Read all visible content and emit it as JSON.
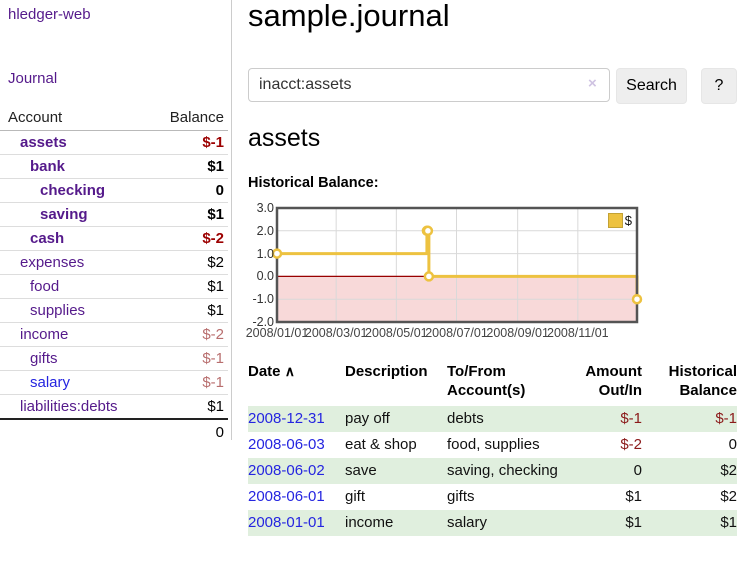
{
  "colors": {
    "purple_link": "#551a8b",
    "blue_link": "#2525e0",
    "neg_strong": "#9c0000",
    "neg_muted": "#b86e6e",
    "table_neg": "#8b1a1a",
    "stripe_green": "#e0efde",
    "series_yellow": "#edc240",
    "negative_region": "#f8d9d9",
    "zero_line": "#990000",
    "grid": "#d9d9d9",
    "plot_border": "#545454"
  },
  "sidebar": {
    "brand": "hledger-web",
    "nav": [
      {
        "label": "Journal"
      }
    ],
    "table": {
      "headers": [
        "Account",
        "Balance"
      ],
      "rows": [
        {
          "account": "assets",
          "indent": 1,
          "bold": true,
          "link": "purple",
          "balance": "$-1",
          "balance_style": "negStrong"
        },
        {
          "account": "bank",
          "indent": 2,
          "bold": true,
          "link": "purple",
          "balance": "$1",
          "balance_style": "normal"
        },
        {
          "account": "checking",
          "indent": 3,
          "bold": true,
          "link": "purple",
          "balance": "0",
          "balance_style": "normal"
        },
        {
          "account": "saving",
          "indent": 3,
          "bold": true,
          "link": "purple",
          "balance": "$1",
          "balance_style": "normal"
        },
        {
          "account": "cash",
          "indent": 2,
          "bold": true,
          "link": "purple",
          "balance": "$-2",
          "balance_style": "negStrong"
        },
        {
          "account": "expenses",
          "indent": 1,
          "bold": false,
          "link": "purple",
          "balance": "$2",
          "balance_style": "normal"
        },
        {
          "account": "food",
          "indent": 2,
          "bold": false,
          "link": "purple",
          "balance": "$1",
          "balance_style": "normal"
        },
        {
          "account": "supplies",
          "indent": 2,
          "bold": false,
          "link": "purple",
          "balance": "$1",
          "balance_style": "normal"
        },
        {
          "account": "income",
          "indent": 1,
          "bold": false,
          "link": "purple",
          "balance": "$-2",
          "balance_style": "negMuted"
        },
        {
          "account": "gifts",
          "indent": 2,
          "bold": false,
          "link": "purple",
          "balance": "$-1",
          "balance_style": "negMuted"
        },
        {
          "account": "salary",
          "indent": 2,
          "bold": false,
          "link": "blue",
          "balance": "$-1",
          "balance_style": "negMuted"
        },
        {
          "account": "liabilities:debts",
          "indent": 1,
          "bold": false,
          "link": "purple",
          "balance": "$1",
          "balance_style": "normal"
        }
      ],
      "total": "0"
    }
  },
  "main": {
    "title": "sample.journal",
    "search": {
      "value": "inacct:assets",
      "clear_icon": "×",
      "button": "Search",
      "help": "?"
    },
    "account_heading": "assets",
    "chart_label": "Historical Balance:"
  },
  "chart_data": {
    "type": "line",
    "title": "Historical Balance",
    "legend": [
      "$"
    ],
    "step": true,
    "ylim": [
      -2,
      3
    ],
    "y_ticks": [
      3.0,
      2.0,
      1.0,
      0.0,
      -1.0,
      -2.0
    ],
    "x_range_days": [
      0,
      365
    ],
    "x_ticks": [
      {
        "day": 0,
        "label": "2008/01/01"
      },
      {
        "day": 60,
        "label": "2008/03/01"
      },
      {
        "day": 121,
        "label": "2008/05/01"
      },
      {
        "day": 182,
        "label": "2008/07/01"
      },
      {
        "day": 244,
        "label": "2008/09/01"
      },
      {
        "day": 305,
        "label": "2008/11/01"
      }
    ],
    "series": [
      {
        "name": "$",
        "color": "#edc240",
        "points": [
          {
            "date": "2008-01-01",
            "day": 0,
            "value": 1
          },
          {
            "date": "2008-06-01",
            "day": 152,
            "value": 2
          },
          {
            "date": "2008-06-02",
            "day": 153,
            "value": 2
          },
          {
            "date": "2008-06-03",
            "day": 154,
            "value": 0
          },
          {
            "date": "2008-12-31",
            "day": 365,
            "value": -1
          }
        ]
      }
    ],
    "grid": true,
    "legend_position": "top-right",
    "negative_region_shaded": true
  },
  "register": {
    "headers": {
      "date": "Date",
      "sort_icon": "∧",
      "description": "Description",
      "accounts": "To/From Account(s)",
      "amount": "Amount Out/In",
      "balance": "Historical Balance"
    },
    "rows": [
      {
        "date": "2008-12-31",
        "description": "pay off",
        "accounts": "debts",
        "amount": "$-1",
        "amount_negative": true,
        "balance": "$-1",
        "balance_negative": true
      },
      {
        "date": "2008-06-03",
        "description": "eat & shop",
        "accounts": "food, supplies",
        "amount": "$-2",
        "amount_negative": true,
        "balance": "0",
        "balance_negative": false
      },
      {
        "date": "2008-06-02",
        "description": "save",
        "accounts": "saving, checking",
        "amount": "0",
        "amount_negative": false,
        "balance": "$2",
        "balance_negative": false
      },
      {
        "date": "2008-06-01",
        "description": "gift",
        "accounts": "gifts",
        "amount": "$1",
        "amount_negative": false,
        "balance": "$2",
        "balance_negative": false
      },
      {
        "date": "2008-01-01",
        "description": "income",
        "accounts": "salary",
        "amount": "$1",
        "amount_negative": false,
        "balance": "$1",
        "balance_negative": false
      }
    ]
  }
}
